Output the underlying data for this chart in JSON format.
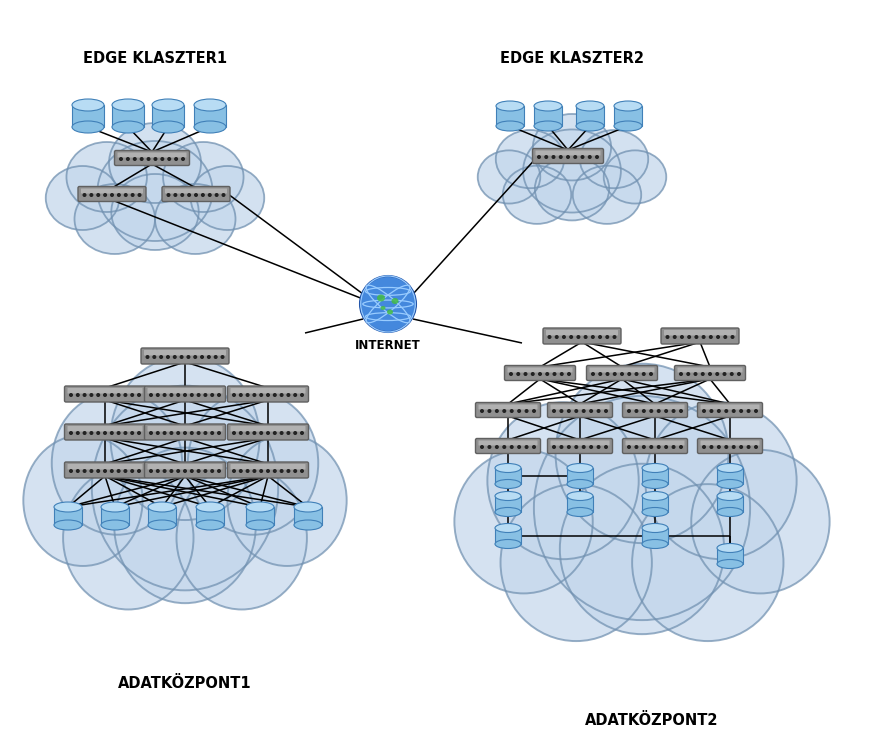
{
  "bg_color": "#ffffff",
  "cloud_fill": "#c5d8ec",
  "cloud_edge": "#7090b0",
  "cloud_alpha": 0.82,
  "switch_fill_top": "#c8c8c8",
  "switch_fill_body": "#909090",
  "switch_edge": "#606060",
  "db_fill_top": "#b8dcf4",
  "db_fill_body": "#88c0e4",
  "db_edge": "#4080b8",
  "line_color": "#000000",
  "labels": {
    "edge1": "EDGE KLASZTER1",
    "edge2": "EDGE KLASZTER2",
    "dc1": "ADATKÖZPONT1",
    "dc2": "ADATKÖZPONT2",
    "internet": "INTERNET"
  },
  "label_fontsize": 10.5,
  "label_fontweight": "bold"
}
